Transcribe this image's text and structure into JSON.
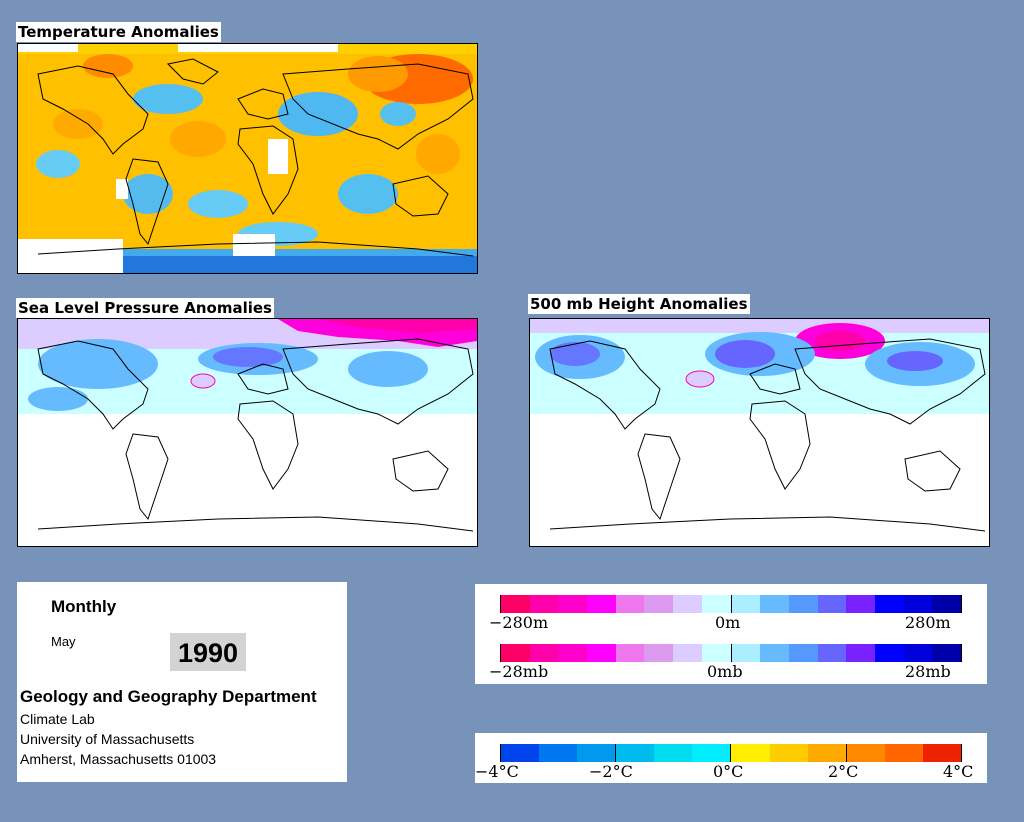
{
  "titles": {
    "temperature": "Temperature Anomalies",
    "slp": "Sea Level Pressure Anomalies",
    "height": "500 mb Height Anomalies"
  },
  "info": {
    "period": "Monthly",
    "month": "May",
    "year": "1990",
    "department": "Geology and Geography Department",
    "lab": "Climate Lab",
    "university": "University of Massachusetts",
    "address": "Amherst, Massachusetts 01003"
  },
  "height_scale": {
    "colors": [
      "#ff0066",
      "#ff00aa",
      "#ff00cc",
      "#ff00ff",
      "#ee77ee",
      "#dd99ee",
      "#ddccff",
      "#ccffff",
      "#aaeeff",
      "#66bbff",
      "#5599ff",
      "#6666ff",
      "#7722ff",
      "#0000ff",
      "#0000dd",
      "#0000aa"
    ],
    "labels": [
      "−280m",
      "0m",
      "280m"
    ]
  },
  "pressure_scale": {
    "colors": [
      "#ff0066",
      "#ff00aa",
      "#ff00cc",
      "#ff00ff",
      "#ee77ee",
      "#dd99ee",
      "#ddccff",
      "#ccffff",
      "#aaeeff",
      "#66bbff",
      "#5599ff",
      "#6666ff",
      "#7722ff",
      "#0000ff",
      "#0000dd",
      "#0000aa"
    ],
    "labels": [
      "−28mb",
      "0mb",
      "28mb"
    ]
  },
  "temp_scale": {
    "colors": [
      "#0044ee",
      "#0077ee",
      "#0099ee",
      "#00bbee",
      "#00ddee",
      "#00eeff",
      "#ffee00",
      "#ffcc00",
      "#ffaa00",
      "#ff8800",
      "#ff6600",
      "#ee2200"
    ],
    "labels": [
      "−4°C",
      "−2°C",
      "0°C",
      "2°C",
      "4°C"
    ]
  }
}
